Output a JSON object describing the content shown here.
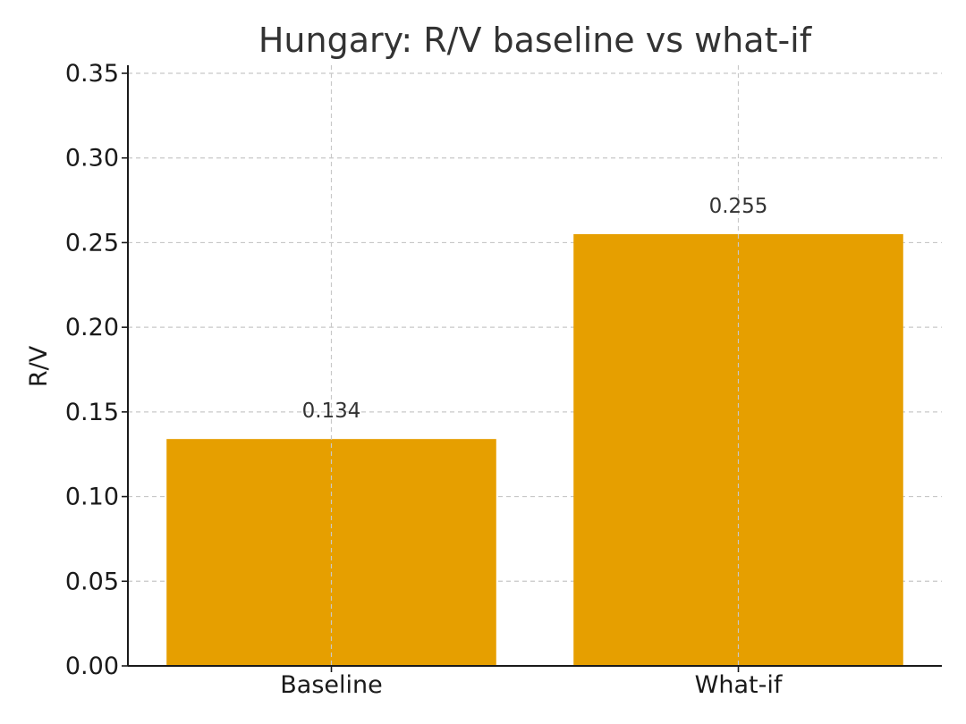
{
  "chart_data": {
    "type": "bar",
    "title": "Hungary: R/V baseline vs what-if",
    "xlabel": "",
    "ylabel": "R/V",
    "categories": [
      "Baseline",
      "What-if"
    ],
    "values": [
      0.134,
      0.255
    ],
    "data_labels": [
      "0.134",
      "0.255"
    ],
    "ylim": [
      0,
      0.35
    ],
    "yticks": [
      0.0,
      0.05,
      0.1,
      0.15,
      0.2,
      0.25,
      0.3,
      0.35
    ],
    "ytick_labels": [
      "0.00",
      "0.05",
      "0.10",
      "0.15",
      "0.20",
      "0.25",
      "0.30",
      "0.35"
    ],
    "grid": true,
    "bar_color": "#E69F00"
  }
}
